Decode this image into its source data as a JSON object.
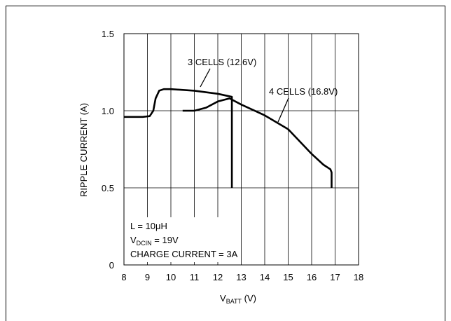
{
  "chart_data": {
    "type": "line",
    "title": "",
    "xlabel": {
      "main": "V",
      "sub": "BATT",
      "unit": " (V)"
    },
    "ylabel": "RIPPLE CURRENT (A)",
    "xlim": [
      8,
      18
    ],
    "ylim": [
      0,
      1.5
    ],
    "x_ticks": [
      "8",
      "9",
      "10",
      "11",
      "12",
      "13",
      "14",
      "15",
      "16",
      "17",
      "18"
    ],
    "y_ticks": [
      "0",
      "0.5",
      "1.0",
      "1.5"
    ],
    "x_grid": true,
    "y_grid": true,
    "series": [
      {
        "name": "3 CELLS (12.6V)",
        "x": [
          8.0,
          8.8,
          9.1,
          9.25,
          9.35,
          9.5,
          9.7,
          10.0,
          11.0,
          12.0,
          12.6,
          12.6,
          12.6
        ],
        "y": [
          0.96,
          0.96,
          0.965,
          1.0,
          1.08,
          1.13,
          1.14,
          1.14,
          1.13,
          1.11,
          1.09,
          0.5,
          0.5
        ]
      },
      {
        "name": "4 CELLS (16.8V)",
        "x": [
          10.5,
          11.0,
          11.5,
          12.0,
          12.5,
          13.0,
          14.0,
          15.0,
          16.0,
          16.5,
          16.8,
          16.85,
          16.85
        ],
        "y": [
          1.0,
          1.0,
          1.02,
          1.06,
          1.08,
          1.04,
          0.97,
          0.88,
          0.72,
          0.65,
          0.62,
          0.6,
          0.5
        ]
      }
    ],
    "annotations": {
      "series_labels": [
        "3 CELLS (12.6V)",
        "4 CELLS (16.8V)"
      ],
      "conditions": {
        "line1": "L = 10μH",
        "line2_main": "V",
        "line2_sub": "DCIN",
        "line2_rest": " = 19V",
        "line3": "CHARGE CURRENT = 3A"
      }
    },
    "colors": {
      "line": "#000000",
      "grid": "#000000",
      "background": "#ffffff"
    }
  }
}
